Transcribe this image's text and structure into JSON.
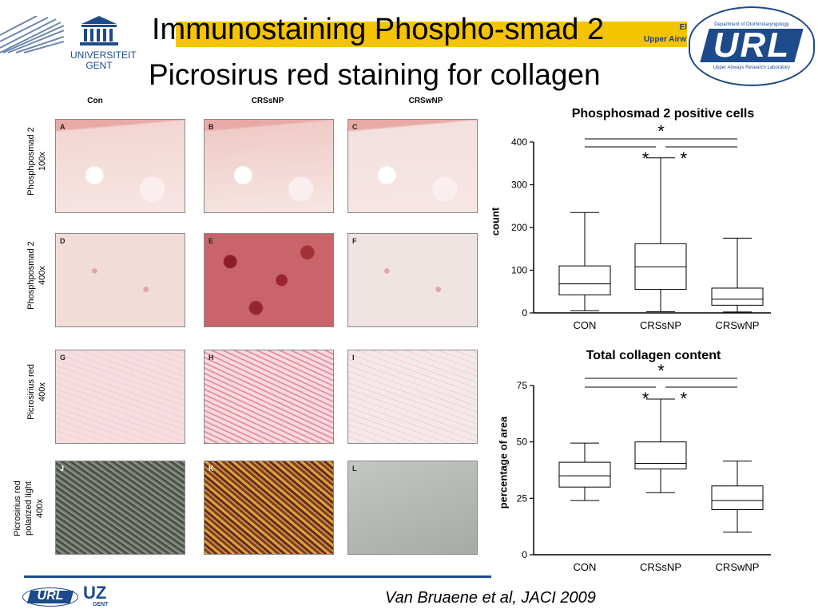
{
  "slide": {
    "title_line1": "Immunostaining Phospho-smad 2",
    "title_line2": "Picrosirus red staining for collagen",
    "citation": "Van Bruaene et al, JACI 2009",
    "banner_text_line1": "El",
    "banner_text_line2": "Upper Airw"
  },
  "logos": {
    "ugent_line1": "UNIVERSITEIT",
    "ugent_line2": "GENT",
    "url_top_text": "Department of Otorhinolaryngology",
    "url_main": "URL",
    "url_bottom_text": "Upper Airways Research Laboratory",
    "footer_url": "URL",
    "footer_uz": "UZ",
    "footer_gent": "GENT"
  },
  "micrographs": {
    "columns": [
      "Con",
      "CRSsNP",
      "CRSwNP"
    ],
    "rows": [
      {
        "label_line1": "Phosphposmad 2",
        "label_line2": "100x",
        "panels": [
          "A",
          "B",
          "C"
        ]
      },
      {
        "label_line1": "Phosphposmad 2",
        "label_line2": "400x",
        "panels": [
          "D",
          "E",
          "F"
        ]
      },
      {
        "label_line1": "Picrosirius red",
        "label_line2": "400x",
        "panels": [
          "G",
          "H",
          "I"
        ]
      },
      {
        "label_line1": "Picrosirius red",
        "label_line2": "polarized light",
        "label_line3": "400x",
        "panels": [
          "J",
          "K",
          "L"
        ]
      }
    ],
    "colors": {
      "row1": [
        "#f3d6d3",
        "#f0cbc6",
        "#f3e1df"
      ],
      "row2": [
        "#f2dcd8",
        "#c9656a",
        "#f0e4e3"
      ],
      "row3": [
        "#f5dde0",
        "#f0b8c3",
        "#f4e9ea"
      ],
      "row4": [
        "#5b6058",
        "#b26a3a",
        "#b9bdb8"
      ]
    }
  },
  "chart_data": [
    {
      "type": "box",
      "title": "Phosphosmad 2 positive cells",
      "ylabel": "count",
      "categories": [
        "CON",
        "CRSsNP",
        "CRSwNP"
      ],
      "ylim": [
        0,
        400
      ],
      "yticks": [
        0,
        100,
        200,
        300,
        400
      ],
      "boxes": [
        {
          "min": 5,
          "q1": 42,
          "median": 68,
          "q3": 110,
          "max": 235
        },
        {
          "min": 3,
          "q1": 55,
          "median": 108,
          "q3": 162,
          "max": 363
        },
        {
          "min": 2,
          "q1": 18,
          "median": 32,
          "q3": 58,
          "max": 175
        }
      ],
      "significance": [
        "*",
        "*",
        "*"
      ]
    },
    {
      "type": "box",
      "title": "Total collagen content",
      "ylabel": "percentage of area",
      "categories": [
        "CON",
        "CRSsNP",
        "CRSwNP"
      ],
      "ylim": [
        0,
        75
      ],
      "yticks": [
        0,
        25,
        50,
        75
      ],
      "boxes": [
        {
          "min": 24,
          "q1": 30,
          "median": 35,
          "q3": 41,
          "max": 49.5
        },
        {
          "min": 27.5,
          "q1": 38,
          "median": 40.5,
          "q3": 50,
          "max": 69
        },
        {
          "min": 10,
          "q1": 20,
          "median": 24,
          "q3": 30.5,
          "max": 41.5
        }
      ],
      "significance": [
        "*",
        "*",
        "*"
      ]
    }
  ]
}
